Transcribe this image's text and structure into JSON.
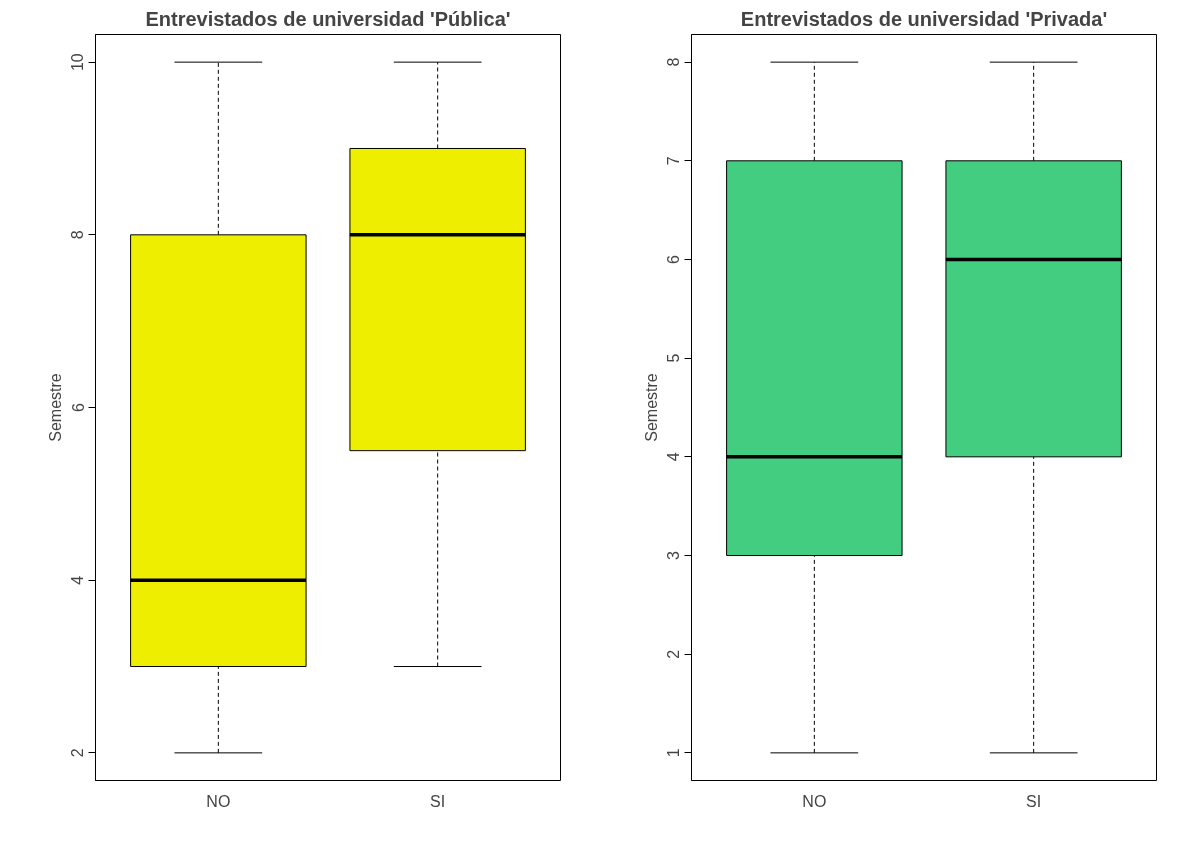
{
  "chart_data": [
    {
      "type": "box",
      "title": "Entrevistados de universidad 'Pública'",
      "ylabel": "Semestre",
      "categories": [
        "NO",
        "SI"
      ],
      "colors": [
        "#eeee00",
        "#eeee00"
      ],
      "boxes": [
        {
          "low": 2,
          "q1": 3,
          "median": 4,
          "q3": 8,
          "high": 10
        },
        {
          "low": 3,
          "q1": 5.5,
          "median": 8,
          "q3": 9,
          "high": 10
        }
      ],
      "ylim": [
        1.68,
        10.32
      ],
      "yticks": [
        2,
        4,
        6,
        8,
        10
      ],
      "grid": false
    },
    {
      "type": "box",
      "title": "Entrevistados de universidad 'Privada'",
      "ylabel": "Semestre",
      "categories": [
        "NO",
        "SI"
      ],
      "colors": [
        "#43cd80",
        "#43cd80"
      ],
      "boxes": [
        {
          "low": 1,
          "q1": 3,
          "median": 4,
          "q3": 7,
          "high": 8
        },
        {
          "low": 1,
          "q1": 4,
          "median": 6,
          "q3": 7,
          "high": 8
        }
      ],
      "ylim": [
        0.72,
        8.28
      ],
      "yticks": [
        1,
        2,
        3,
        4,
        5,
        6,
        7,
        8
      ],
      "grid": false
    }
  ]
}
